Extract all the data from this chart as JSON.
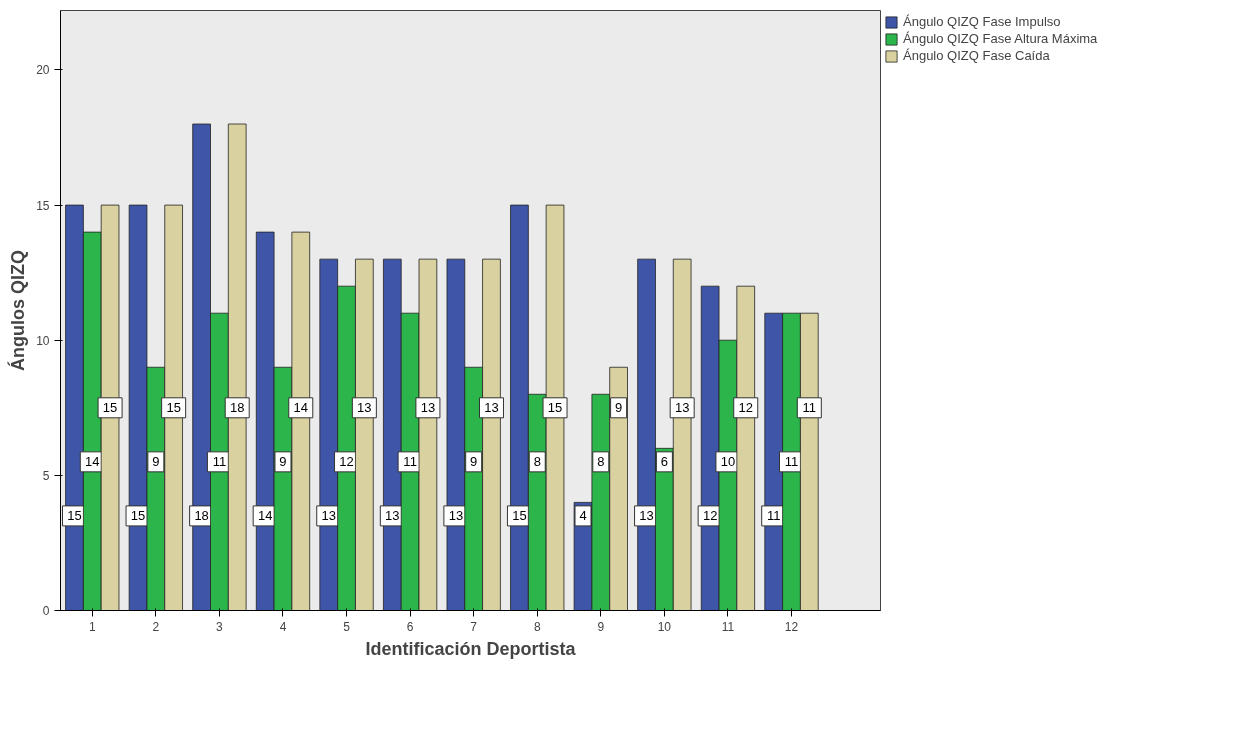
{
  "chart_data": {
    "type": "bar",
    "xlabel": "Identificación Deportista",
    "ylabel": "Ángulos QIZQ",
    "categories": [
      "1",
      "2",
      "3",
      "4",
      "5",
      "6",
      "7",
      "8",
      "9",
      "10",
      "11",
      "12"
    ],
    "series": [
      {
        "name": "Ángulo QIZQ Fase Impulso",
        "color": "#3f56a8",
        "values": [
          15,
          15,
          18,
          14,
          13,
          13,
          13,
          15,
          4,
          13,
          12,
          11
        ]
      },
      {
        "name": "Ángulo QIZQ Fase Altura Máxima",
        "color": "#2bb54a",
        "values": [
          14,
          9,
          11,
          9,
          12,
          11,
          9,
          8,
          8,
          6,
          10,
          11
        ]
      },
      {
        "name": "Ángulo QIZQ Fase Caída",
        "color": "#d9d1a0",
        "values": [
          15,
          15,
          18,
          14,
          13,
          13,
          13,
          15,
          9,
          13,
          12,
          11
        ]
      }
    ],
    "ylim": [
      0,
      22.2
    ],
    "yticks": [
      0,
      5,
      10,
      15,
      20
    ],
    "grid": false,
    "legend": "top right",
    "data_labels": true
  }
}
